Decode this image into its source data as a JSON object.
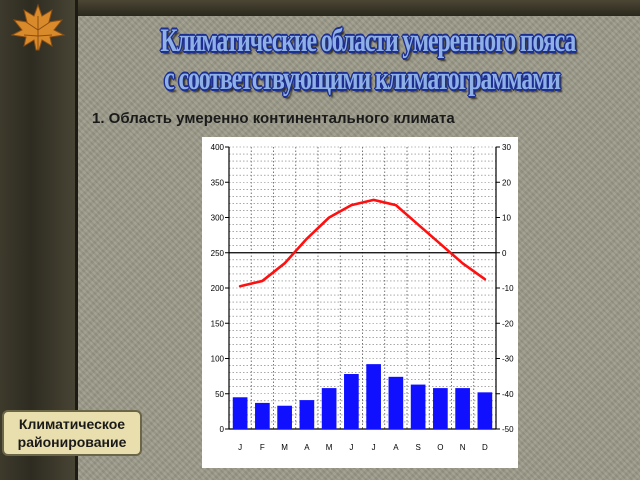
{
  "slide": {
    "title_line1": "Климатические области умеренного пояса",
    "title_line2": "с соответствующими климатограммами",
    "subtitle": "1. Область умеренно континентального климата",
    "button_line1": "Климатическое",
    "button_line2": "районирование"
  },
  "chart_data": {
    "type": "bar+line",
    "categories": [
      "J",
      "F",
      "M",
      "A",
      "M",
      "J",
      "J",
      "A",
      "S",
      "O",
      "N",
      "D"
    ],
    "series": [
      {
        "kind": "bar",
        "axis": "left",
        "values": [
          45,
          37,
          33,
          41,
          58,
          78,
          92,
          74,
          63,
          58,
          58,
          52
        ],
        "color": "#1010ff"
      },
      {
        "kind": "line",
        "axis": "right",
        "values": [
          -9.5,
          -8,
          -3,
          4,
          10,
          13.5,
          15,
          13.5,
          8,
          2.5,
          -3,
          -7.5
        ],
        "color": "#ff1010"
      }
    ],
    "y_left": {
      "min": 0,
      "max": 400,
      "ticks": [
        "0",
        "50",
        "100",
        "150",
        "200",
        "250",
        "300",
        "350",
        "400"
      ]
    },
    "y_right": {
      "min": -50,
      "max": 30,
      "ticks": [
        "-50",
        "-40",
        "-30",
        "-20",
        "-10",
        "0",
        "10",
        "20",
        "30"
      ]
    },
    "grid": true,
    "title": "",
    "xlabel": "",
    "ylabel": ""
  }
}
